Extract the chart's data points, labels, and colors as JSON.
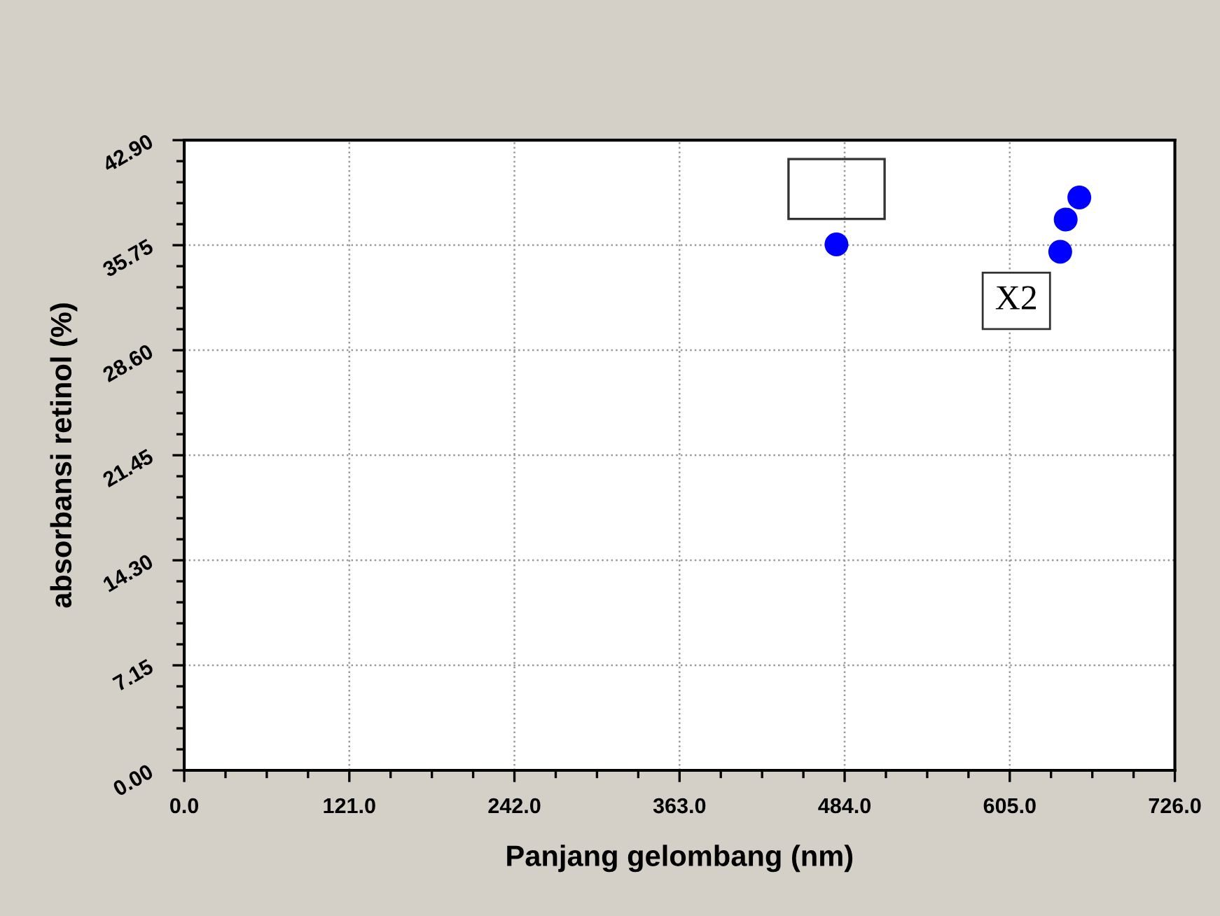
{
  "chart_data": {
    "type": "scatter",
    "xlabel": "Panjang gelombang (nm)",
    "ylabel": "absorbansi retinol (%)",
    "x": [
      478,
      642,
      646,
      656
    ],
    "values": [
      35.8,
      35.3,
      37.5,
      39.0
    ],
    "color": "#0000ff",
    "marker": "circle",
    "grid": true,
    "xlim": [
      0,
      726
    ],
    "ylim": [
      0,
      42.9
    ],
    "xticks": [
      {
        "value": 0,
        "label": "0.0"
      },
      {
        "value": 121,
        "label": "121.0"
      },
      {
        "value": 242,
        "label": "242.0"
      },
      {
        "value": 363,
        "label": "363.0"
      },
      {
        "value": 484,
        "label": "484.0"
      },
      {
        "value": 605,
        "label": "605.0"
      },
      {
        "value": 726,
        "label": "726.0"
      }
    ],
    "yticks": [
      {
        "value": 0,
        "label": "0.00"
      },
      {
        "value": 7.15,
        "label": "7.15"
      },
      {
        "value": 14.3,
        "label": "14.30"
      },
      {
        "value": 21.45,
        "label": "21.45"
      },
      {
        "value": 28.6,
        "label": "28.60"
      },
      {
        "value": 35.75,
        "label": "35.75"
      },
      {
        "value": 42.9,
        "label": "42.90"
      }
    ],
    "annotations": [
      "X2"
    ]
  }
}
